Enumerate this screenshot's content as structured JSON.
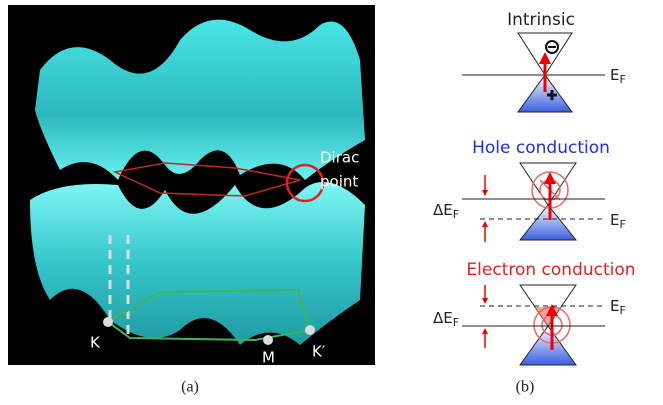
{
  "panel_a": {
    "dirac_label": [
      "Dirac",
      "point"
    ],
    "k_points": [
      "K",
      "M",
      "K′"
    ],
    "caption": "(a)"
  },
  "panel_b": {
    "intrinsic": {
      "title": "Intrinsic",
      "fermi": {
        "base": "E",
        "sub": "F"
      }
    },
    "hole": {
      "title": "Hole conduction",
      "delta": {
        "base": "ΔE",
        "sub": "F"
      },
      "fermi": {
        "base": "E",
        "sub": "F"
      }
    },
    "electron": {
      "title": "Electron conduction",
      "delta": {
        "base": "ΔE",
        "sub": "F"
      },
      "fermi": {
        "base": "E",
        "sub": "F"
      }
    },
    "caption": "(b)"
  }
}
